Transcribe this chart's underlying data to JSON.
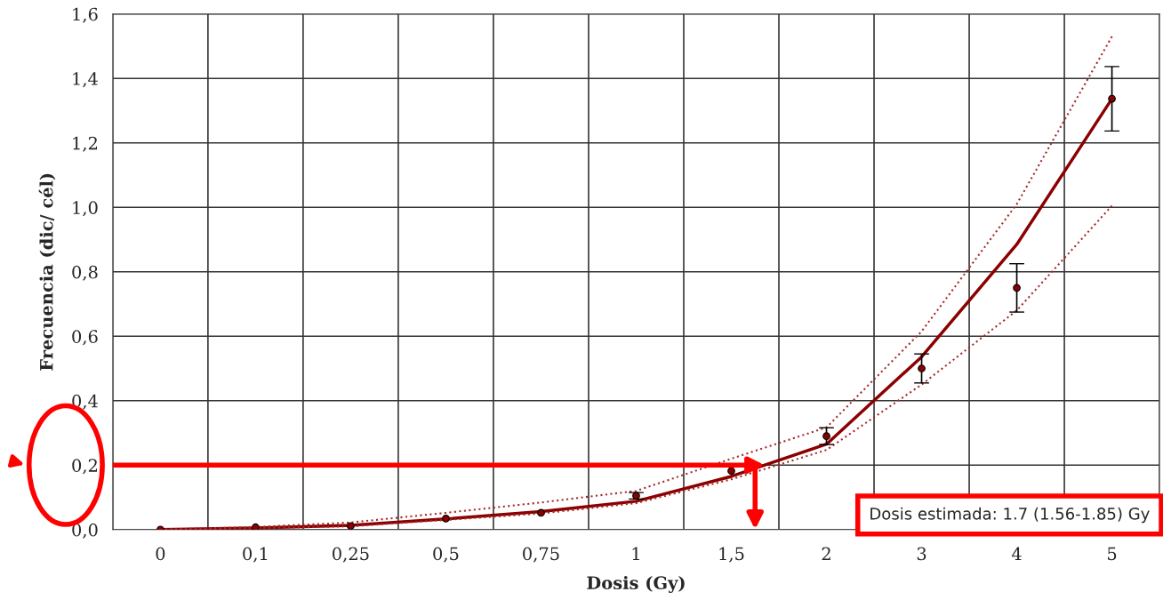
{
  "chart_data": {
    "type": "line",
    "xlabel": "Dosis (Gy)",
    "ylabel": "Frecuencia (dic/ cél)",
    "categories": [
      "0",
      "0,1",
      "0,25",
      "0,5",
      "0,75",
      "1",
      "1,5",
      "2",
      "3",
      "4",
      "5"
    ],
    "series": [
      {
        "color": "#8b0000",
        "line_style": "solid",
        "marker": "none",
        "values": [
          0,
          0.005,
          0.013,
          0.033,
          0.056,
          0.088,
          0.165,
          0.265,
          0.536,
          0.885,
          1.337
        ]
      },
      {
        "color": "#a52a2a",
        "line_style": "dotted",
        "marker": "none",
        "values": [
          0,
          0.008,
          0.022,
          0.052,
          0.084,
          0.12,
          0.22,
          0.317,
          0.615,
          1.01,
          1.53
        ]
      },
      {
        "color": "#a52a2a",
        "line_style": "dotted",
        "marker": "none",
        "values": [
          0,
          0.004,
          0.01,
          0.03,
          0.05,
          0.082,
          0.156,
          0.247,
          0.45,
          0.68,
          1.005
        ]
      },
      {
        "type": "scatter",
        "color": "#8b0000",
        "marker": "circle",
        "values": [
          0,
          0.007,
          0.011,
          0.034,
          0.052,
          0.105,
          0.182,
          0.29,
          0.5,
          0.75,
          1.337
        ],
        "errors": [
          null,
          null,
          null,
          null,
          null,
          0.01,
          null,
          0.026,
          0.045,
          0.075,
          0.1
        ]
      }
    ],
    "ylim": [
      0,
      1.6
    ],
    "yticks": [
      {
        "value": 0,
        "label": "0,0"
      },
      {
        "value": 0.2,
        "label": "0,2"
      },
      {
        "value": 0.4,
        "label": "0,4"
      },
      {
        "value": 0.6,
        "label": "0,6"
      },
      {
        "value": 0.8,
        "label": "0,8"
      },
      {
        "value": 1.0,
        "label": "1,0"
      },
      {
        "value": 1.2,
        "label": "1,2"
      },
      {
        "value": 1.4,
        "label": "1,4"
      },
      {
        "value": 1.6,
        "label": "1,6"
      }
    ],
    "grid": true,
    "legend": false,
    "ref_lines": [
      {
        "axis": "y",
        "value": 0.2,
        "color": "#ff0000"
      }
    ],
    "annotations": [
      "Dosis estimada: 1.7 (1.56-1.85) Gy"
    ]
  }
}
